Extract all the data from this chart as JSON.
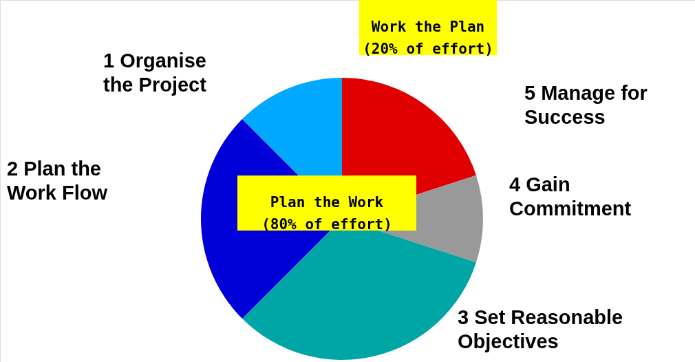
{
  "chart_data": {
    "type": "pie",
    "categories": [
      "5 Manage for\nSuccess",
      "4 Gain\nCommitment",
      "3 Set Reasonable\nObjectives",
      "2 Plan the\nWork Flow",
      "1 Organise\nthe Project"
    ],
    "values": [
      20,
      10,
      32.5,
      25,
      12.5
    ],
    "colors": [
      "#e00000",
      "#999999",
      "#00a5a5",
      "#0000d8",
      "#00a8ff"
    ],
    "annotations": [
      "Work the Plan\n(20% of effort)",
      "Plan the Work\n(80% of effort)"
    ]
  }
}
